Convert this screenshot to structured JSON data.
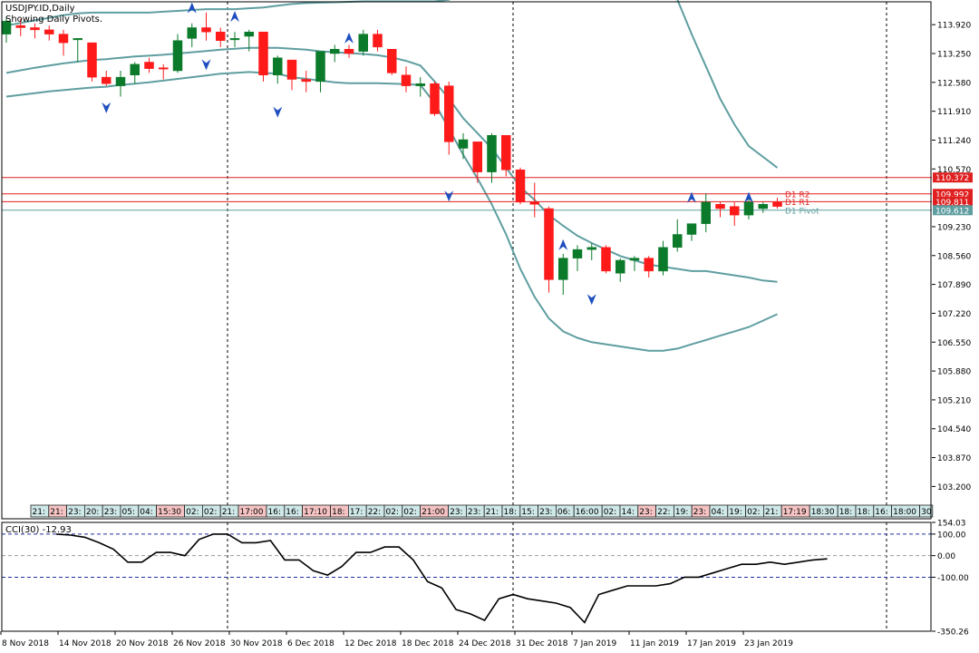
{
  "window": {
    "symbol_title": "USDJPY.ID,Daily",
    "indicator_note": "Showing Daily Pivots."
  },
  "colors": {
    "bull": "#0b7a2a",
    "bear": "#ff1a1a",
    "bands": "#5f9ea0",
    "pivot_red": "#e02020",
    "pivot_blue": "#5f9ea0",
    "arrow": "#1f4fbf",
    "cci_line": "#000000",
    "level_line": "#2030a0",
    "grid_dash": "#000000",
    "frame": "#000000"
  },
  "chart_data": [
    {
      "type": "candlestick",
      "y_ticks": [
        "113.920",
        "113.250",
        "112.580",
        "111.910",
        "111.240",
        "110.570",
        "109.230",
        "108.560",
        "107.890",
        "107.220",
        "106.550",
        "105.880",
        "105.210",
        "104.540",
        "103.870",
        "103.200"
      ],
      "ylim": [
        102.45,
        114.45
      ],
      "date_labels": [
        {
          "index": 0,
          "label": "8 Nov 2018"
        },
        {
          "index": 4,
          "label": "14 Nov 2018"
        },
        {
          "index": 8,
          "label": "20 Nov 2018"
        },
        {
          "index": 12,
          "label": "26 Nov 2018"
        },
        {
          "index": 16,
          "label": "30 Nov 2018"
        },
        {
          "index": 20,
          "label": "6 Dec 2018"
        },
        {
          "index": 24,
          "label": "12 Dec 2018"
        },
        {
          "index": 28,
          "label": "18 Dec 2018"
        },
        {
          "index": 32,
          "label": "24 Dec 2018"
        },
        {
          "index": 36,
          "label": "31 Dec 2018"
        },
        {
          "index": 40,
          "label": "7 Jan 2019"
        },
        {
          "index": 44,
          "label": "11 Jan 2019"
        },
        {
          "index": 48,
          "label": "17 Jan 2019"
        },
        {
          "index": 52,
          "label": "23 Jan 2019"
        }
      ],
      "candles": [
        {
          "o": 113.7,
          "h": 114.1,
          "l": 113.5,
          "c": 114.0
        },
        {
          "o": 113.9,
          "h": 114.05,
          "l": 113.65,
          "c": 113.85
        },
        {
          "o": 113.85,
          "h": 113.95,
          "l": 113.6,
          "c": 113.8
        },
        {
          "o": 113.8,
          "h": 113.9,
          "l": 113.55,
          "c": 113.7
        },
        {
          "o": 113.7,
          "h": 113.8,
          "l": 113.2,
          "c": 113.5
        },
        {
          "o": 113.6,
          "h": 113.6,
          "l": 113.05,
          "c": 113.6
        },
        {
          "o": 113.5,
          "h": 113.5,
          "l": 112.6,
          "c": 112.7
        },
        {
          "o": 112.7,
          "h": 112.85,
          "l": 112.5,
          "c": 112.55
        },
        {
          "o": 112.5,
          "h": 112.85,
          "l": 112.25,
          "c": 112.7
        },
        {
          "o": 112.75,
          "h": 113.05,
          "l": 112.55,
          "c": 113.0
        },
        {
          "o": 113.05,
          "h": 113.15,
          "l": 112.8,
          "c": 112.9
        },
        {
          "o": 112.92,
          "h": 113.0,
          "l": 112.65,
          "c": 112.9
        },
        {
          "o": 112.85,
          "h": 113.7,
          "l": 112.8,
          "c": 113.55
        },
        {
          "o": 113.6,
          "h": 113.95,
          "l": 113.4,
          "c": 113.85
        },
        {
          "o": 113.85,
          "h": 114.2,
          "l": 113.55,
          "c": 113.75
        },
        {
          "o": 113.75,
          "h": 113.85,
          "l": 113.4,
          "c": 113.55
        },
        {
          "o": 113.6,
          "h": 113.75,
          "l": 113.4,
          "c": 113.6
        },
        {
          "o": 113.65,
          "h": 113.8,
          "l": 113.3,
          "c": 113.75
        },
        {
          "o": 113.75,
          "h": 113.75,
          "l": 112.6,
          "c": 112.75
        },
        {
          "o": 112.75,
          "h": 113.2,
          "l": 112.55,
          "c": 113.15
        },
        {
          "o": 113.1,
          "h": 113.1,
          "l": 112.4,
          "c": 112.65
        },
        {
          "o": 112.65,
          "h": 112.85,
          "l": 112.35,
          "c": 112.6
        },
        {
          "o": 112.6,
          "h": 113.3,
          "l": 112.35,
          "c": 113.3
        },
        {
          "o": 113.25,
          "h": 113.45,
          "l": 113.05,
          "c": 113.35
        },
        {
          "o": 113.35,
          "h": 113.45,
          "l": 113.15,
          "c": 113.25
        },
        {
          "o": 113.3,
          "h": 113.8,
          "l": 113.2,
          "c": 113.7
        },
        {
          "o": 113.7,
          "h": 113.8,
          "l": 113.3,
          "c": 113.4
        },
        {
          "o": 113.35,
          "h": 113.35,
          "l": 112.75,
          "c": 112.8
        },
        {
          "o": 112.75,
          "h": 112.95,
          "l": 112.35,
          "c": 112.5
        },
        {
          "o": 112.5,
          "h": 112.7,
          "l": 112.25,
          "c": 112.55
        },
        {
          "o": 112.55,
          "h": 112.6,
          "l": 111.8,
          "c": 111.85
        },
        {
          "o": 112.5,
          "h": 112.6,
          "l": 110.9,
          "c": 111.2
        },
        {
          "o": 111.05,
          "h": 111.4,
          "l": 110.8,
          "c": 111.25
        },
        {
          "o": 111.2,
          "h": 111.2,
          "l": 110.25,
          "c": 110.5
        },
        {
          "o": 110.5,
          "h": 111.4,
          "l": 110.25,
          "c": 111.35
        },
        {
          "o": 111.35,
          "h": 111.35,
          "l": 110.4,
          "c": 110.55
        },
        {
          "o": 110.55,
          "h": 110.6,
          "l": 109.75,
          "c": 109.8
        },
        {
          "o": 109.8,
          "h": 110.25,
          "l": 109.45,
          "c": 109.75
        },
        {
          "o": 109.65,
          "h": 109.7,
          "l": 107.7,
          "c": 108.0
        },
        {
          "o": 108.0,
          "h": 108.6,
          "l": 107.65,
          "c": 108.5
        },
        {
          "o": 108.5,
          "h": 108.8,
          "l": 108.2,
          "c": 108.7
        },
        {
          "o": 108.7,
          "h": 108.85,
          "l": 108.45,
          "c": 108.75
        },
        {
          "o": 108.75,
          "h": 108.8,
          "l": 108.15,
          "c": 108.2
        },
        {
          "o": 108.15,
          "h": 108.5,
          "l": 107.95,
          "c": 108.45
        },
        {
          "o": 108.45,
          "h": 108.55,
          "l": 108.2,
          "c": 108.5
        },
        {
          "o": 108.5,
          "h": 108.55,
          "l": 108.05,
          "c": 108.2
        },
        {
          "o": 108.2,
          "h": 108.9,
          "l": 108.1,
          "c": 108.75
        },
        {
          "o": 108.75,
          "h": 109.4,
          "l": 108.65,
          "c": 109.05
        },
        {
          "o": 109.05,
          "h": 109.3,
          "l": 108.9,
          "c": 109.3
        },
        {
          "o": 109.3,
          "h": 110.0,
          "l": 109.1,
          "c": 109.8
        },
        {
          "o": 109.75,
          "h": 109.8,
          "l": 109.45,
          "c": 109.65
        },
        {
          "o": 109.7,
          "h": 109.8,
          "l": 109.25,
          "c": 109.5
        },
        {
          "o": 109.5,
          "h": 109.9,
          "l": 109.4,
          "c": 109.8
        },
        {
          "o": 109.65,
          "h": 109.8,
          "l": 109.55,
          "c": 109.75
        },
        {
          "o": 109.8,
          "h": 109.9,
          "l": 109.65,
          "c": 109.7
        }
      ],
      "upper_band": [
        113.9,
        113.96,
        114.02,
        114.08,
        114.14,
        114.18,
        114.2,
        114.2,
        114.2,
        114.2,
        114.2,
        114.22,
        114.24,
        114.26,
        114.28,
        114.28,
        114.28,
        114.3,
        114.32,
        114.36,
        114.4,
        114.42,
        114.43,
        114.44,
        114.45,
        114.46,
        114.46,
        114.46,
        114.46,
        114.46,
        114.46,
        114.5,
        114.6,
        114.7,
        114.8,
        114.9,
        115.0,
        115.1,
        115.2,
        115.3,
        115.4,
        115.5,
        115.5,
        115.5,
        115.4,
        115.2,
        114.9,
        114.5,
        113.7,
        112.95,
        112.2,
        111.6,
        111.1,
        110.85,
        110.6
      ],
      "middle_band": [
        112.8,
        112.86,
        112.92,
        112.97,
        113.02,
        113.06,
        113.1,
        113.12,
        113.15,
        113.18,
        113.2,
        113.22,
        113.25,
        113.28,
        113.31,
        113.34,
        113.36,
        113.38,
        113.38,
        113.38,
        113.36,
        113.34,
        113.3,
        113.28,
        113.26,
        113.24,
        113.21,
        113.16,
        113.08,
        112.97,
        112.6,
        112.2,
        111.75,
        111.4,
        111.05,
        110.6,
        110.15,
        109.85,
        109.5,
        109.25,
        109.02,
        108.85,
        108.7,
        108.55,
        108.45,
        108.35,
        108.3,
        108.25,
        108.2,
        108.2,
        108.15,
        108.1,
        108.05,
        107.98,
        107.95
      ],
      "lower_band": [
        112.25,
        112.29,
        112.33,
        112.37,
        112.4,
        112.43,
        112.46,
        112.48,
        112.52,
        112.55,
        112.58,
        112.62,
        112.66,
        112.7,
        112.74,
        112.78,
        112.8,
        112.82,
        112.8,
        112.78,
        112.7,
        112.66,
        112.62,
        112.58,
        112.56,
        112.56,
        112.56,
        112.55,
        112.54,
        112.52,
        112.1,
        111.5,
        110.9,
        110.35,
        109.75,
        109.05,
        108.25,
        107.6,
        107.1,
        106.8,
        106.65,
        106.55,
        106.5,
        106.45,
        106.4,
        106.35,
        106.35,
        106.4,
        106.5,
        106.6,
        106.7,
        106.8,
        106.9,
        107.05,
        107.2
      ],
      "up_arrows": [
        {
          "index": 13,
          "low": 114.1
        },
        {
          "index": 16,
          "low": 113.9
        },
        {
          "index": 24,
          "low": 113.4
        },
        {
          "index": 39,
          "low": 108.6
        },
        {
          "index": 48,
          "low": 109.7
        },
        {
          "index": 52,
          "low": 109.7
        }
      ],
      "down_arrows": [
        {
          "index": 7,
          "high": 112.2
        },
        {
          "index": 14,
          "high": 113.2
        },
        {
          "index": 19,
          "high": 112.1
        },
        {
          "index": 31,
          "high": 110.15
        },
        {
          "index": 41,
          "high": 107.75
        }
      ],
      "pivot_levels": [
        {
          "value": 110.372,
          "color_key": "pivot_red",
          "label": "",
          "badge": "110.372"
        },
        {
          "value": 109.992,
          "color_key": "pivot_red",
          "label": "D1 R2",
          "badge": "109.992"
        },
        {
          "value": 109.811,
          "color_key": "pivot_red",
          "label": "D1 R1",
          "badge": "109.811"
        },
        {
          "value": 109.612,
          "color_key": "pivot_blue",
          "label": "D1 Pivot",
          "badge": "109.612"
        }
      ],
      "time_strip": [
        {
          "text": "21:",
          "hl": false
        },
        {
          "text": "21:",
          "hl": true
        },
        {
          "text": "23:",
          "hl": false
        },
        {
          "text": "20:",
          "hl": false
        },
        {
          "text": "23:",
          "hl": false
        },
        {
          "text": "05:",
          "hl": false
        },
        {
          "text": "04:",
          "hl": false
        },
        {
          "text": "15:30",
          "hl": true
        },
        {
          "text": "02:",
          "hl": false
        },
        {
          "text": "02:",
          "hl": false
        },
        {
          "text": "21:",
          "hl": false
        },
        {
          "text": "17:00",
          "hl": true
        },
        {
          "text": "16:",
          "hl": false
        },
        {
          "text": "16:",
          "hl": false
        },
        {
          "text": "17:10",
          "hl": true
        },
        {
          "text": "18:",
          "hl": true
        },
        {
          "text": "17:",
          "hl": false
        },
        {
          "text": "22:",
          "hl": false
        },
        {
          "text": "02:",
          "hl": false
        },
        {
          "text": "02:",
          "hl": false
        },
        {
          "text": "21:00",
          "hl": true
        },
        {
          "text": "23:",
          "hl": false
        },
        {
          "text": "23:",
          "hl": false
        },
        {
          "text": "21:",
          "hl": false
        },
        {
          "text": "18:",
          "hl": false
        },
        {
          "text": "15:",
          "hl": false
        },
        {
          "text": "23:",
          "hl": false
        },
        {
          "text": "06:",
          "hl": false
        },
        {
          "text": "16:00",
          "hl": false
        },
        {
          "text": "02:",
          "hl": false
        },
        {
          "text": "14:",
          "hl": false
        },
        {
          "text": "23:",
          "hl": true
        },
        {
          "text": "22:",
          "hl": false
        },
        {
          "text": "19:",
          "hl": false
        },
        {
          "text": "23:",
          "hl": true
        },
        {
          "text": "04:",
          "hl": false
        },
        {
          "text": "19:",
          "hl": false
        },
        {
          "text": "02:",
          "hl": false
        },
        {
          "text": "21:",
          "hl": false
        },
        {
          "text": "17:19",
          "hl": true
        },
        {
          "text": "18:30",
          "hl": false
        },
        {
          "text": "18:",
          "hl": false
        },
        {
          "text": "18:",
          "hl": false
        },
        {
          "text": "16:",
          "hl": false
        },
        {
          "text": "18:00",
          "hl": false
        },
        {
          "text": "30",
          "hl": false
        }
      ]
    },
    {
      "type": "line",
      "title": "CCI(30) -12.93",
      "ylim": [
        -350.26,
        154.03
      ],
      "y_ticks": [
        "154.03",
        "100.00",
        "0.00",
        "-100.00",
        "-350.26"
      ],
      "levels": [
        100,
        0,
        -100
      ],
      "values": [
        100,
        95,
        85,
        60,
        30,
        -30,
        -30,
        15,
        15,
        0,
        75,
        100,
        100,
        60,
        60,
        70,
        -20,
        -20,
        -70,
        -90,
        -50,
        15,
        15,
        40,
        40,
        -20,
        -120,
        -150,
        -250,
        -270,
        -300,
        -200,
        -180,
        -200,
        -210,
        -220,
        -240,
        -310,
        -180,
        -160,
        -140,
        -140,
        -140,
        -130,
        -100,
        -100,
        -80,
        -60,
        -40,
        -40,
        -30,
        -40,
        -30,
        -20,
        -15
      ]
    }
  ]
}
